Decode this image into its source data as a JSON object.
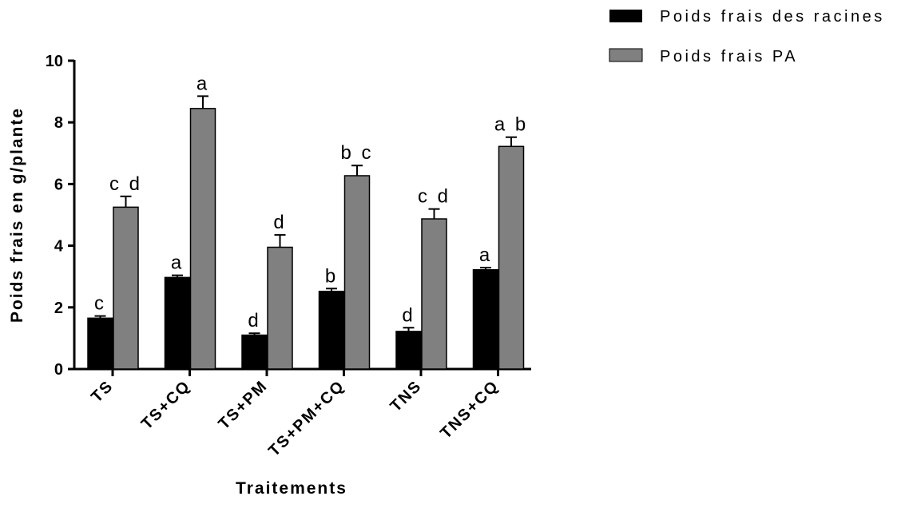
{
  "chart_data": {
    "type": "bar",
    "xlabel": "Traitements",
    "ylabel": "Poids frais en g/plante",
    "ylim": [
      0,
      10
    ],
    "yticks": [
      "0",
      "2",
      "4",
      "6",
      "8",
      "10"
    ],
    "categories": [
      "TS",
      "TS+CQ",
      "TS+PM",
      "TS+PM+CQ",
      "TNS",
      "TNS+CQ"
    ],
    "legend_position": "top-right",
    "grid": false,
    "series": [
      {
        "name": "Poids frais des racines",
        "color": "#000000",
        "values": [
          1.65,
          2.97,
          1.1,
          2.52,
          1.22,
          3.22
        ],
        "errors": [
          0.07,
          0.07,
          0.06,
          0.09,
          0.12,
          0.07
        ],
        "letters": [
          "c",
          "a",
          "d",
          "b",
          "d",
          "a"
        ]
      },
      {
        "name": "Poids frais PA",
        "color": "#808080",
        "values": [
          5.25,
          8.45,
          3.95,
          6.27,
          4.87,
          7.22
        ],
        "errors": [
          0.35,
          0.4,
          0.4,
          0.33,
          0.32,
          0.3
        ],
        "letters": [
          "c d",
          "a",
          "d",
          "b c",
          "c d",
          "a b"
        ]
      }
    ]
  }
}
